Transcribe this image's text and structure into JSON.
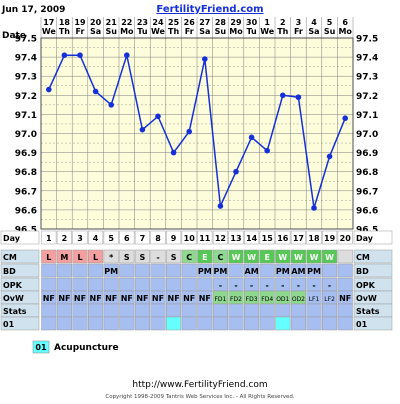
{
  "header": {
    "date": "Jun 17, 2009",
    "site": "FertilityFriend.com",
    "corner_label": "Date"
  },
  "colors": {
    "line": "#1530d8",
    "grid": "#808080",
    "plot_bg": "#fdfddc",
    "L": "#f4a0a0",
    "M": "#f4a0a0",
    "C": "#8fd88f",
    "E": "#55c855",
    "W": "#55c855",
    "row_blue": "#a7bef1",
    "cyan": "#66ffff",
    "label_bg": "#cfe2ee"
  },
  "chart_data": {
    "type": "line",
    "title": "",
    "xlabel": "Day",
    "ylabel": "",
    "ylim": [
      96.5,
      97.5
    ],
    "yticks": [
      96.5,
      96.6,
      96.7,
      96.8,
      96.9,
      97.0,
      97.1,
      97.2,
      97.3,
      97.4,
      97.5
    ],
    "x_dates": [
      "17",
      "18",
      "19",
      "20",
      "21",
      "22",
      "23",
      "24",
      "25",
      "26",
      "27",
      "28",
      "29",
      "30",
      "1",
      "2",
      "3",
      "4",
      "5",
      "6"
    ],
    "x_weekdays": [
      "We",
      "Th",
      "Fr",
      "Sa",
      "Su",
      "Mo",
      "Tu",
      "We",
      "Th",
      "Fr",
      "Sa",
      "Su",
      "Mo",
      "Tu",
      "We",
      "Th",
      "Fr",
      "Sa",
      "Su",
      "Mo"
    ],
    "days": [
      1,
      2,
      3,
      4,
      5,
      6,
      7,
      8,
      9,
      10,
      11,
      12,
      13,
      14,
      15,
      16,
      17,
      18,
      19,
      20
    ],
    "series": [
      {
        "name": "",
        "values": [
          97.23,
          97.41,
          97.41,
          97.22,
          97.15,
          97.41,
          97.02,
          97.09,
          96.9,
          97.01,
          97.39,
          96.62,
          96.8,
          96.98,
          96.91,
          97.2,
          97.19,
          96.61,
          96.88,
          97.08
        ]
      }
    ]
  },
  "rows": [
    {
      "label": "Day",
      "kind": "day"
    },
    {
      "label": "CM",
      "kind": "cm",
      "cells": [
        "L",
        "M",
        "L",
        "L",
        "*",
        "S",
        "S",
        "-",
        "S",
        "C",
        "E",
        "C",
        "W",
        "W",
        "E",
        "W",
        "W",
        "W",
        "W",
        ""
      ]
    },
    {
      "label": "BD",
      "kind": "text",
      "cells": [
        "",
        "",
        "",
        "",
        "PM",
        "",
        "",
        "",
        "",
        "",
        "PM",
        "PM",
        "",
        "AM",
        "",
        "PM",
        "AM",
        "PM",
        "",
        ""
      ]
    },
    {
      "label": "OPK",
      "kind": "text",
      "cells": [
        "",
        "",
        "",
        "",
        "",
        "",
        "",
        "",
        "",
        "",
        "",
        "-",
        "-",
        "-",
        "-",
        "-",
        "-",
        "-",
        "-",
        ""
      ]
    },
    {
      "label": "OvW",
      "kind": "ovw",
      "cells": [
        "NF",
        "NF",
        "NF",
        "NF",
        "NF",
        "NF",
        "NF",
        "NF",
        "NF",
        "NF",
        "NF",
        "FD1",
        "FD2",
        "FD3",
        "FD4",
        "OD1",
        "OD2",
        "LF1",
        "LF2",
        "NF"
      ]
    },
    {
      "label": "Stats",
      "kind": "blank"
    },
    {
      "label": "01",
      "kind": "marks",
      "marked": [
        9,
        16
      ]
    }
  ],
  "legend": {
    "code": "01",
    "label": "Acupuncture"
  },
  "footer": {
    "url": "http://www.FertilityFriend.com",
    "copyright": "Copyright 1998-2009 Tantris Web Services Inc. - All Rights Reserved."
  }
}
